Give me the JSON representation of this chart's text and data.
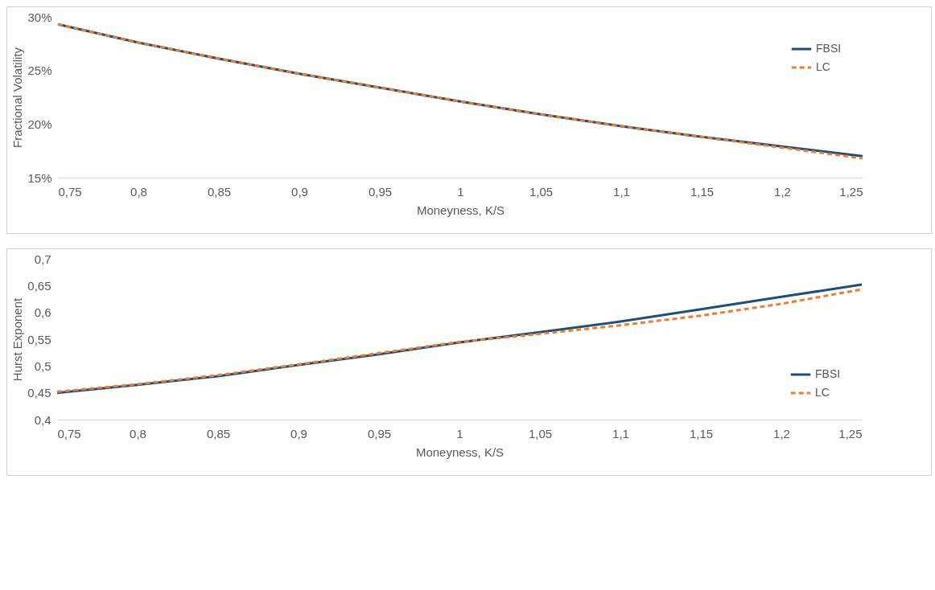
{
  "chart_data": [
    {
      "type": "line",
      "xlabel": "Moneyness, K/S",
      "ylabel": "Fractional Volatility",
      "x": [
        0.75,
        0.8,
        0.85,
        0.9,
        0.95,
        1.0,
        1.05,
        1.1,
        1.15,
        1.2,
        1.25
      ],
      "series": [
        {
          "name": "FBSI",
          "color": "#1f4e79",
          "line_style": "solid",
          "values": [
            29.3,
            27.6,
            26.1,
            24.7,
            23.4,
            22.1,
            20.9,
            19.8,
            18.8,
            17.9,
            17.0
          ]
        },
        {
          "name": "LC",
          "color": "#ed7d31",
          "line_style": "dashed",
          "values": [
            29.3,
            27.6,
            26.1,
            24.7,
            23.4,
            22.1,
            20.9,
            19.8,
            18.8,
            17.8,
            16.8
          ]
        }
      ],
      "xlim": [
        0.75,
        1.25
      ],
      "ylim": [
        15,
        30
      ],
      "xticks": [
        {
          "value": 0.75,
          "label": "0,75"
        },
        {
          "value": 0.8,
          "label": "0,8"
        },
        {
          "value": 0.85,
          "label": "0,85"
        },
        {
          "value": 0.9,
          "label": "0,9"
        },
        {
          "value": 0.95,
          "label": "0,95"
        },
        1,
        {
          "value": 1.05,
          "label": "1,05"
        },
        {
          "value": 1.1,
          "label": "1,1"
        },
        {
          "value": 1.15,
          "label": "1,15"
        },
        {
          "value": 1.2,
          "label": "1,2"
        },
        {
          "value": 1.25,
          "label": "1,25"
        }
      ],
      "yticks": [
        {
          "value": 15,
          "label": "15%"
        },
        {
          "value": 20,
          "label": "20%"
        },
        {
          "value": 25,
          "label": "25%"
        },
        {
          "value": 30,
          "label": "30%"
        }
      ],
      "legend": "top right"
    },
    {
      "type": "line",
      "xlabel": "Moneyness, K/S",
      "ylabel": "Hurst Exponent",
      "x": [
        0.75,
        0.8,
        0.85,
        0.9,
        0.95,
        1.0,
        1.05,
        1.1,
        1.15,
        1.2,
        1.25
      ],
      "series": [
        {
          "name": "FBSI",
          "color": "#1f4e79",
          "line_style": "solid",
          "values": [
            0.45,
            0.465,
            0.481,
            0.502,
            0.522,
            0.544,
            0.563,
            0.583,
            0.606,
            0.629,
            0.652
          ]
        },
        {
          "name": "LC",
          "color": "#ed7d31",
          "line_style": "dashed",
          "values": [
            0.452,
            0.466,
            0.483,
            0.503,
            0.524,
            0.545,
            0.56,
            0.576,
            0.594,
            0.616,
            0.643
          ]
        }
      ],
      "xlim": [
        0.75,
        1.25
      ],
      "ylim": [
        0.4,
        0.7
      ],
      "xticks": [
        {
          "value": 0.75,
          "label": "0,75"
        },
        {
          "value": 0.8,
          "label": "0,8"
        },
        {
          "value": 0.85,
          "label": "0,85"
        },
        {
          "value": 0.9,
          "label": "0,9"
        },
        {
          "value": 0.95,
          "label": "0,95"
        },
        1,
        {
          "value": 1.05,
          "label": "1,05"
        },
        {
          "value": 1.1,
          "label": "1,1"
        },
        {
          "value": 1.15,
          "label": "1,15"
        },
        {
          "value": 1.2,
          "label": "1,2"
        },
        {
          "value": 1.25,
          "label": "1,25"
        }
      ],
      "yticks": [
        {
          "value": 0.4,
          "label": "0,4"
        },
        {
          "value": 0.45,
          "label": "0,45"
        },
        {
          "value": 0.5,
          "label": "0,5"
        },
        {
          "value": 0.55,
          "label": "0,55"
        },
        {
          "value": 0.6,
          "label": "0,6"
        },
        {
          "value": 0.65,
          "label": "0,65"
        },
        {
          "value": 0.7,
          "label": "0,7"
        }
      ],
      "legend": "bottom right"
    }
  ]
}
